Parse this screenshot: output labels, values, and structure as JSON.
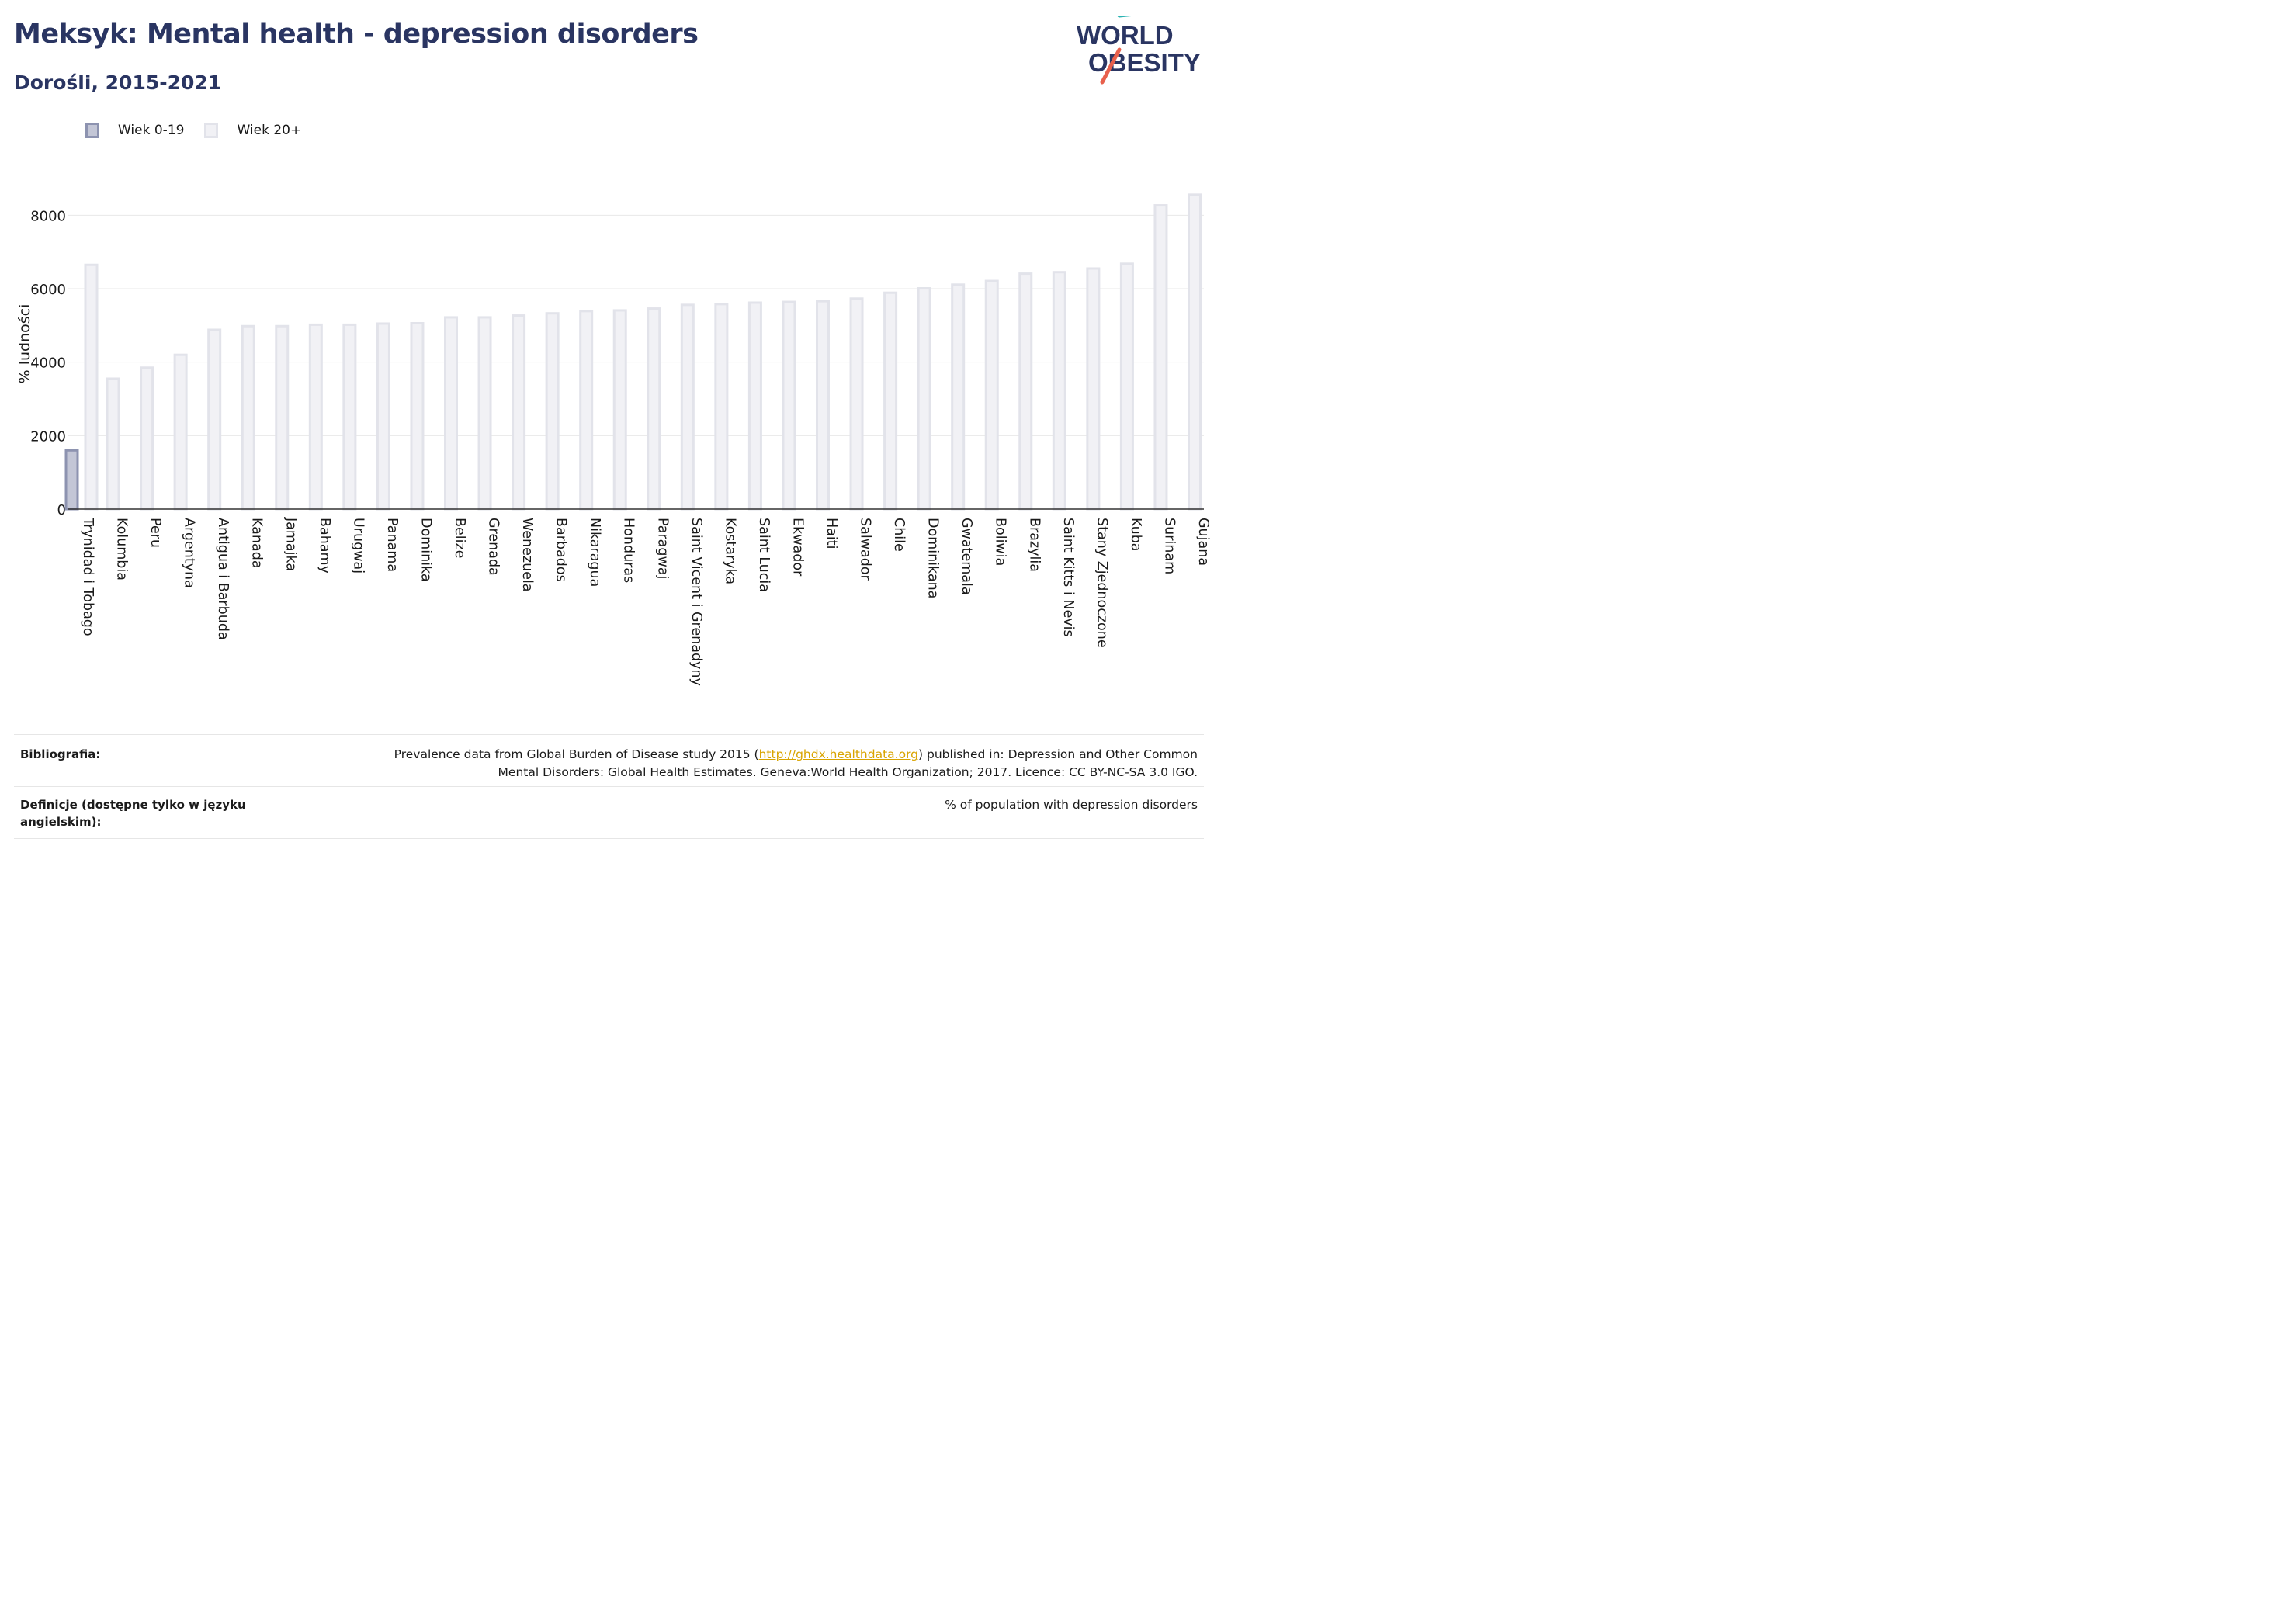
{
  "header": {
    "title": "Meksyk: Mental health - depression disorders",
    "subtitle": "Dorośli, 2015-2021"
  },
  "logo": {
    "line1": "WORLD",
    "line2": "OBESITY",
    "colors": {
      "text": "#2a3562",
      "slash_teal": "#2bb3b3",
      "slash_red": "#e8604c"
    }
  },
  "legend": [
    {
      "label": "Wiek 0-19",
      "color": "#c3c6d6"
    },
    {
      "label": "Wiek 20+",
      "color": "#f1f1f5"
    }
  ],
  "chart_data": {
    "type": "bar",
    "ylabel": "% ludności",
    "xlabel": "",
    "ylim": [
      0,
      9000
    ],
    "yticks": [
      0,
      2000,
      4000,
      6000,
      8000
    ],
    "grid": true,
    "legend_position": "top-left",
    "categories": [
      "Trynidad i Tobago",
      "Kolumbia",
      "Peru",
      "Argentyna",
      "Antigua i Barbuda",
      "Kanada",
      "Jamajka",
      "Bahamy",
      "Urugwaj",
      "Panama",
      "Dominika",
      "Belize",
      "Grenada",
      "Wenezuela",
      "Barbados",
      "Nikaragua",
      "Honduras",
      "Paragwaj",
      "Saint Vicent i Grenadyny",
      "Kostaryka",
      "Saint Lucia",
      "Ekwador",
      "Haiti",
      "Salwador",
      "Chile",
      "Dominikana",
      "Gwatemala",
      "Boliwia",
      "Brazylia",
      "Saint Kitts i Nevis",
      "Stany Zjednoczone",
      "Kuba",
      "Surinam",
      "Gujana"
    ],
    "series": [
      {
        "name": "Wiek 0-19",
        "color": "#c3c6d6",
        "stroke": "#8d93b0",
        "values": [
          1600,
          null,
          null,
          null,
          null,
          null,
          null,
          null,
          null,
          null,
          null,
          null,
          null,
          null,
          null,
          null,
          null,
          null,
          null,
          null,
          null,
          null,
          null,
          null,
          null,
          null,
          null,
          null,
          null,
          null,
          null,
          null,
          null,
          null
        ]
      },
      {
        "name": "Wiek 20+",
        "color": "#f1f1f5",
        "stroke": "#e2e3ea",
        "values": [
          6650,
          3550,
          3850,
          4200,
          4880,
          4980,
          4980,
          5020,
          5020,
          5050,
          5060,
          5220,
          5220,
          5270,
          5330,
          5390,
          5410,
          5460,
          5560,
          5580,
          5620,
          5640,
          5660,
          5730,
          5890,
          6010,
          6110,
          6210,
          6410,
          6450,
          6550,
          6680,
          8270,
          8560
        ]
      }
    ]
  },
  "footer": {
    "bibliography_label": "Bibliografia:",
    "bibliography_pre": "Prevalence data from Global Burden of Disease study 2015 (",
    "bibliography_link": "http://ghdx.healthdata.org",
    "bibliography_post": ") published in: Depression and Other Common",
    "bibliography_line2": "Mental Disorders: Global Health Estimates. Geneva:World Health Organization; 2017. Licence: CC BY-NC-SA 3.0 IGO.",
    "definitions_label": "Definicje (dostępne tylko w języku angielskim):",
    "definitions_value": "% of population with depression disorders"
  }
}
